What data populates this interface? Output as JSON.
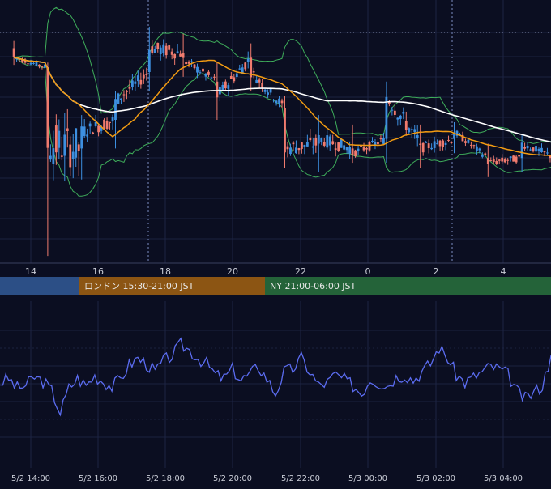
{
  "chart_data": [
    {
      "type": "candlestick",
      "x_ticks": [
        "14",
        "16",
        "18",
        "20",
        "22",
        "0",
        "2",
        "4"
      ],
      "ylim": [
        0,
        100
      ],
      "grid": true,
      "colors": {
        "up": "#3d8fe0",
        "down": "#f07b6e",
        "ma_short": "#f39c12",
        "ma_long": "#ffffff",
        "bands": "#3fae5b",
        "background": "#0b0e21"
      },
      "candles_summary": [
        {
          "x": "14:00",
          "open": 90,
          "high": 93,
          "low": 83,
          "close": 86
        },
        {
          "x": "15:00",
          "open": 82,
          "high": 84,
          "low": 3,
          "close": 50
        },
        {
          "x": "16:00",
          "open": 48,
          "high": 62,
          "low": 35,
          "close": 55
        },
        {
          "x": "17:00",
          "open": 60,
          "high": 72,
          "low": 48,
          "close": 68
        },
        {
          "x": "18:00",
          "open": 80,
          "high": 99,
          "low": 72,
          "close": 90
        },
        {
          "x": "19:00",
          "open": 88,
          "high": 96,
          "low": 78,
          "close": 85
        },
        {
          "x": "20:00",
          "open": 76,
          "high": 84,
          "low": 60,
          "close": 70
        },
        {
          "x": "21:00",
          "open": 86,
          "high": 92,
          "low": 72,
          "close": 80
        },
        {
          "x": "22:00",
          "open": 65,
          "high": 70,
          "low": 40,
          "close": 48
        },
        {
          "x": "23:00",
          "open": 50,
          "high": 62,
          "low": 38,
          "close": 52
        },
        {
          "x": "00:00",
          "open": 48,
          "high": 58,
          "low": 42,
          "close": 46
        },
        {
          "x": "01:00",
          "open": 52,
          "high": 76,
          "low": 42,
          "close": 70
        },
        {
          "x": "02:00",
          "open": 50,
          "high": 58,
          "low": 40,
          "close": 48
        },
        {
          "x": "03:00",
          "open": 52,
          "high": 59,
          "low": 46,
          "close": 55
        },
        {
          "x": "04:00",
          "open": 44,
          "high": 50,
          "low": 36,
          "close": 42
        },
        {
          "x": "05:00",
          "open": 44,
          "high": 54,
          "low": 38,
          "close": 50
        }
      ]
    },
    {
      "type": "line",
      "x_ticks": [
        "5/2 14:00",
        "5/2 16:00",
        "5/2 18:00",
        "5/2 20:00",
        "5/2 22:00",
        "5/3 00:00",
        "5/3 02:00",
        "5/3 04:00"
      ],
      "ylim": [
        0,
        100
      ],
      "grid": true,
      "series": [
        {
          "color": "#5b6cf0",
          "values": [
            52,
            55,
            48,
            50,
            56,
            53,
            46,
            30,
            48,
            55,
            50,
            57,
            53,
            49,
            55,
            65,
            70,
            66,
            60,
            68,
            72,
            80,
            76,
            70,
            66,
            58,
            55,
            62,
            54,
            58,
            64,
            55,
            44,
            60,
            62,
            70,
            60,
            50,
            52,
            58,
            54,
            50,
            44,
            55,
            52,
            50,
            56,
            58,
            54,
            60,
            66,
            78,
            70,
            58,
            52,
            56,
            60,
            64,
            62,
            58,
            46,
            40,
            45,
            50,
            72
          ]
        }
      ]
    }
  ],
  "sessions": [
    {
      "label": "",
      "color": "#2c4f86"
    },
    {
      "label": "ロンドン 15:30-21:00 JST",
      "color": "#8c5513"
    },
    {
      "label": "NY 21:00-06:00 JST",
      "color": "#246339"
    }
  ]
}
